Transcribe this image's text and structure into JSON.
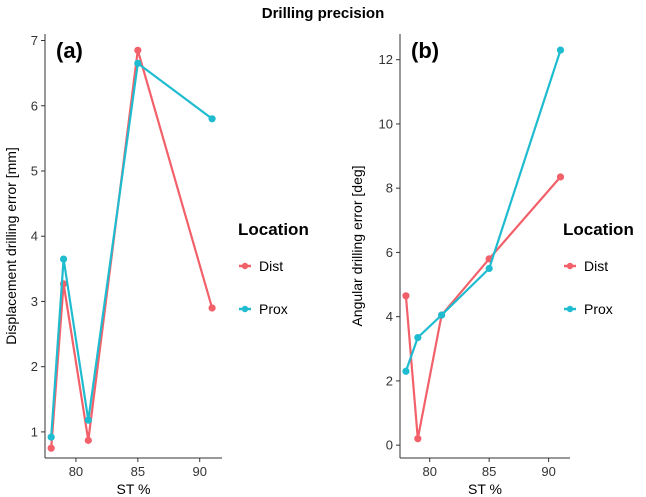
{
  "figure_title": "Drilling precision",
  "colors": {
    "Dist": "#f2606a",
    "Prox": "#1fbcd0"
  },
  "chart_data": [
    {
      "type": "line",
      "panel_label": "(a)",
      "xlabel": "ST %",
      "ylabel": "Displacement drilling error [mm]",
      "xlim": [
        77.5,
        91.8
      ],
      "ylim": [
        0.6,
        7.1
      ],
      "xticks": [
        80,
        85,
        90
      ],
      "yticks": [
        1,
        2,
        3,
        4,
        5,
        6,
        7
      ],
      "legend_title": "Location",
      "series": [
        {
          "name": "Dist",
          "x": [
            78,
            79,
            81,
            85,
            91
          ],
          "values": [
            0.75,
            3.27,
            0.87,
            6.85,
            2.9
          ]
        },
        {
          "name": "Prox",
          "x": [
            78,
            79,
            81,
            85,
            91
          ],
          "values": [
            0.92,
            3.65,
            1.18,
            6.65,
            5.8
          ]
        }
      ]
    },
    {
      "type": "line",
      "panel_label": "(b)",
      "xlabel": "ST %",
      "ylabel": "Angular drilling error [deg]",
      "xlim": [
        77.5,
        91.8
      ],
      "ylim": [
        -0.4,
        12.8
      ],
      "xticks": [
        80,
        85,
        90
      ],
      "yticks": [
        0,
        2,
        4,
        6,
        8,
        10,
        12
      ],
      "legend_title": "Location",
      "series": [
        {
          "name": "Dist",
          "x": [
            78,
            79,
            81,
            85,
            91
          ],
          "values": [
            4.65,
            0.2,
            4.05,
            5.8,
            8.35
          ]
        },
        {
          "name": "Prox",
          "x": [
            78,
            79,
            81,
            85,
            91
          ],
          "values": [
            2.3,
            3.35,
            4.05,
            5.5,
            12.3
          ]
        }
      ]
    }
  ]
}
